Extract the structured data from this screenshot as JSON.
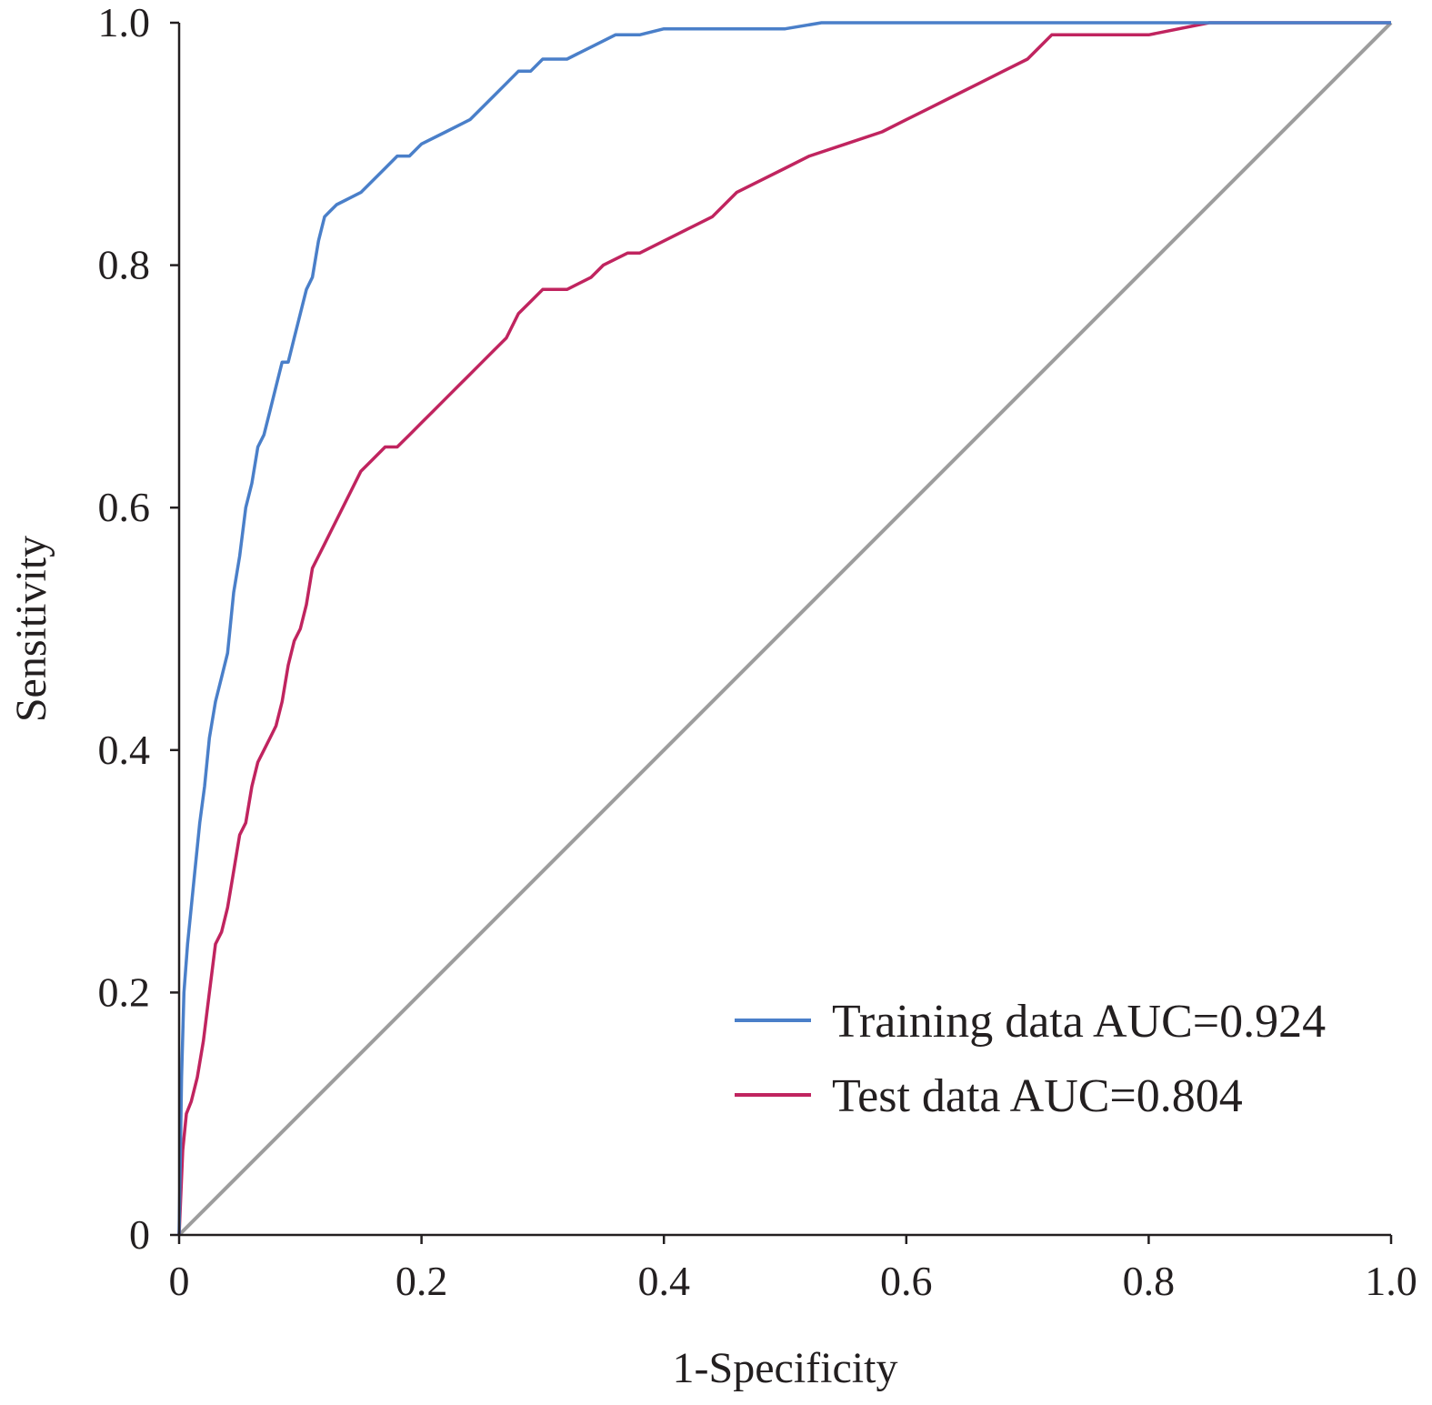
{
  "chart_data": {
    "type": "line",
    "title": "",
    "xlabel": "1-Specificity",
    "ylabel": "Sensitivity",
    "xlim": [
      0,
      1
    ],
    "ylim": [
      0,
      1
    ],
    "x_ticks": [
      "0",
      "0.2",
      "0.4",
      "0.6",
      "0.8",
      "1.0"
    ],
    "y_ticks": [
      "0",
      "0.2",
      "0.4",
      "0.6",
      "0.8",
      "1.0"
    ],
    "grid": false,
    "legend_position": "bottom-right",
    "reference_line": {
      "x": [
        0,
        1
      ],
      "y": [
        0,
        1
      ],
      "color": "#9d9d9d"
    },
    "series": [
      {
        "name": "Training data AUC=0.924",
        "color": "#4a7fc9",
        "x": [
          0,
          0.002,
          0.004,
          0.007,
          0.01,
          0.013,
          0.017,
          0.021,
          0.025,
          0.03,
          0.035,
          0.04,
          0.045,
          0.05,
          0.055,
          0.06,
          0.065,
          0.07,
          0.075,
          0.08,
          0.085,
          0.09,
          0.095,
          0.1,
          0.105,
          0.11,
          0.115,
          0.12,
          0.125,
          0.13,
          0.14,
          0.15,
          0.16,
          0.17,
          0.18,
          0.19,
          0.2,
          0.22,
          0.24,
          0.25,
          0.26,
          0.27,
          0.28,
          0.29,
          0.3,
          0.32,
          0.33,
          0.34,
          0.36,
          0.38,
          0.4,
          0.45,
          0.5,
          0.53,
          0.6,
          0.7,
          0.8,
          0.85,
          0.9,
          1.0
        ],
        "y": [
          0,
          0.13,
          0.2,
          0.24,
          0.27,
          0.3,
          0.34,
          0.37,
          0.41,
          0.44,
          0.46,
          0.48,
          0.53,
          0.56,
          0.6,
          0.62,
          0.65,
          0.66,
          0.68,
          0.7,
          0.72,
          0.72,
          0.74,
          0.76,
          0.78,
          0.79,
          0.82,
          0.84,
          0.845,
          0.85,
          0.855,
          0.86,
          0.87,
          0.88,
          0.89,
          0.89,
          0.9,
          0.91,
          0.92,
          0.93,
          0.94,
          0.95,
          0.96,
          0.96,
          0.97,
          0.97,
          0.975,
          0.98,
          0.99,
          0.99,
          0.995,
          0.995,
          0.995,
          1.0,
          1.0,
          1.0,
          1.0,
          1.0,
          1.0,
          1.0
        ]
      },
      {
        "name": "Test data AUC=0.804",
        "color": "#c0245f",
        "x": [
          0,
          0.003,
          0.006,
          0.01,
          0.015,
          0.02,
          0.025,
          0.03,
          0.035,
          0.04,
          0.045,
          0.05,
          0.055,
          0.06,
          0.065,
          0.07,
          0.075,
          0.08,
          0.085,
          0.09,
          0.095,
          0.1,
          0.105,
          0.11,
          0.115,
          0.12,
          0.125,
          0.13,
          0.14,
          0.15,
          0.16,
          0.17,
          0.18,
          0.19,
          0.2,
          0.21,
          0.22,
          0.23,
          0.24,
          0.25,
          0.26,
          0.27,
          0.28,
          0.29,
          0.3,
          0.32,
          0.34,
          0.35,
          0.37,
          0.38,
          0.4,
          0.42,
          0.44,
          0.46,
          0.48,
          0.5,
          0.52,
          0.55,
          0.58,
          0.6,
          0.62,
          0.64,
          0.66,
          0.68,
          0.7,
          0.72,
          0.76,
          0.8,
          0.85,
          0.9,
          0.95,
          1.0
        ],
        "y": [
          0,
          0.07,
          0.1,
          0.11,
          0.13,
          0.16,
          0.2,
          0.24,
          0.25,
          0.27,
          0.3,
          0.33,
          0.34,
          0.37,
          0.39,
          0.4,
          0.41,
          0.42,
          0.44,
          0.47,
          0.49,
          0.5,
          0.52,
          0.55,
          0.56,
          0.57,
          0.58,
          0.59,
          0.61,
          0.63,
          0.64,
          0.65,
          0.65,
          0.66,
          0.67,
          0.68,
          0.69,
          0.7,
          0.71,
          0.72,
          0.73,
          0.74,
          0.76,
          0.77,
          0.78,
          0.78,
          0.79,
          0.8,
          0.81,
          0.81,
          0.82,
          0.83,
          0.84,
          0.86,
          0.87,
          0.88,
          0.89,
          0.9,
          0.91,
          0.92,
          0.93,
          0.94,
          0.95,
          0.96,
          0.97,
          0.99,
          0.99,
          0.99,
          1.0,
          1.0,
          1.0,
          1.0
        ]
      }
    ]
  }
}
